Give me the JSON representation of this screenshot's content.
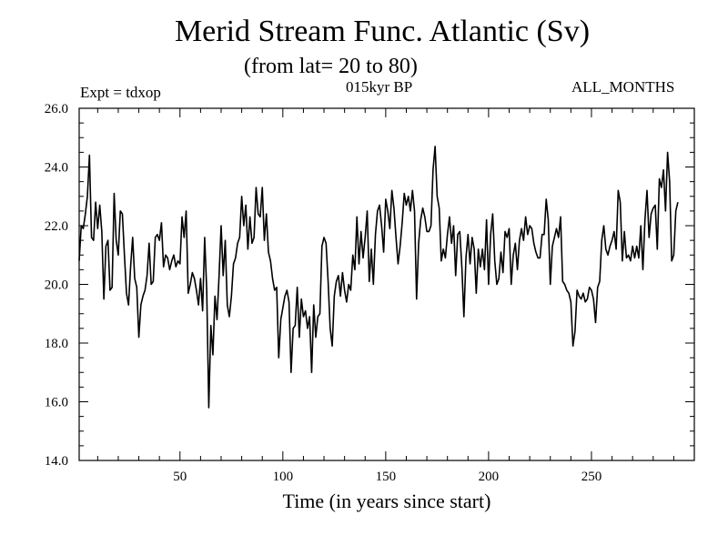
{
  "header": {
    "title": "Merid Stream Func. Atlantic (Sv)",
    "subtitle": "(from lat= 20 to 80)",
    "expt": "Expt = tdxop",
    "period": "015kyr BP",
    "months": "ALL_MONTHS"
  },
  "chart_data": {
    "type": "line",
    "title": "Merid Stream Func. Atlantic (Sv)",
    "subtitle": "(from lat= 20 to 80)",
    "xlabel": "Time (in years since start)",
    "ylabel": "",
    "xlim": [
      1,
      300
    ],
    "ylim": [
      14.0,
      26.0
    ],
    "xticks": [
      50,
      100,
      150,
      200,
      250
    ],
    "yticks": [
      14.0,
      16.0,
      18.0,
      20.0,
      22.0,
      24.0,
      26.0
    ],
    "ytick_labels": [
      "14.0",
      "16.0",
      "18.0",
      "20.0",
      "22.0",
      "24.0",
      "26.0"
    ],
    "grid": false,
    "color": "#000000",
    "series": [
      {
        "x_start": 1,
        "x_step": 1,
        "values": [
          20.8,
          22.0,
          21.9,
          22.4,
          23.0,
          24.4,
          21.6,
          21.5,
          22.8,
          21.9,
          22.7,
          21.8,
          19.5,
          21.3,
          21.5,
          19.8,
          19.9,
          23.1,
          21.5,
          21.0,
          22.5,
          22.4,
          21.0,
          19.7,
          19.3,
          20.6,
          21.6,
          20.2,
          19.9,
          18.2,
          19.3,
          19.6,
          19.8,
          20.3,
          21.4,
          20.0,
          20.1,
          21.6,
          21.7,
          21.5,
          22.1,
          20.6,
          21.0,
          20.9,
          20.5,
          20.8,
          21.0,
          20.6,
          20.8,
          20.7,
          22.3,
          21.6,
          22.5,
          19.7,
          20.0,
          20.4,
          20.2,
          19.8,
          19.3,
          20.2,
          19.1,
          21.6,
          19.8,
          15.8,
          18.6,
          17.6,
          19.6,
          18.8,
          20.3,
          22.0,
          20.3,
          21.5,
          19.3,
          18.9,
          19.6,
          20.7,
          20.9,
          21.4,
          21.6,
          23.0,
          22.0,
          22.7,
          21.2,
          22.3,
          21.4,
          21.6,
          23.3,
          22.4,
          22.3,
          23.3,
          21.5,
          22.4,
          21.1,
          20.8,
          20.2,
          19.8,
          19.9,
          17.5,
          18.8,
          19.2,
          19.6,
          19.8,
          19.4,
          17.0,
          18.5,
          18.6,
          19.9,
          18.2,
          19.5,
          18.9,
          19.1,
          18.5,
          18.9,
          17.0,
          19.3,
          18.2,
          18.9,
          19.0,
          21.3,
          21.6,
          21.4,
          20.1,
          18.5,
          17.9,
          19.6,
          20.1,
          20.3,
          19.6,
          20.4,
          19.8,
          19.4,
          20.0,
          19.8,
          21.0,
          20.5,
          22.3,
          20.7,
          21.8,
          20.9,
          21.6,
          22.5,
          20.1,
          21.2,
          20.0,
          21.7,
          22.5,
          22.7,
          22.0,
          21.1,
          22.9,
          22.5,
          21.9,
          23.2,
          22.6,
          21.6,
          20.7,
          21.3,
          22.1,
          23.1,
          22.7,
          23.0,
          22.5,
          23.2,
          22.5,
          19.5,
          21.4,
          22.2,
          22.6,
          22.3,
          21.8,
          21.8,
          22.0,
          23.9,
          24.7,
          23.0,
          22.6,
          20.8,
          21.2,
          20.9,
          21.7,
          22.3,
          21.4,
          22.0,
          20.3,
          21.7,
          21.8,
          20.6,
          18.9,
          20.9,
          21.7,
          20.7,
          21.6,
          21.2,
          19.7,
          21.2,
          20.6,
          21.2,
          20.5,
          22.2,
          20.0,
          21.7,
          22.4,
          20.8,
          20.0,
          20.2,
          21.1,
          20.4,
          21.8,
          21.6,
          21.9,
          20.0,
          21.0,
          21.4,
          20.5,
          21.5,
          21.9,
          21.5,
          22.3,
          21.7,
          22.0,
          21.9,
          21.4,
          21.1,
          20.9,
          20.9,
          21.7,
          21.7,
          22.9,
          22.2,
          20.0,
          21.3,
          21.6,
          21.9,
          21.6,
          22.3,
          20.1,
          20.0,
          19.8,
          19.7,
          19.4,
          17.9,
          18.4,
          19.8,
          19.6,
          19.5,
          19.7,
          19.4,
          19.5,
          19.9,
          19.8,
          19.5,
          18.7,
          19.9,
          20.1,
          21.5,
          22.0,
          21.2,
          21.0,
          21.3,
          21.5,
          21.8,
          21.2,
          23.2,
          22.8,
          20.8,
          21.8,
          20.9,
          21.0,
          20.8,
          21.3,
          20.9,
          21.3,
          20.9,
          22.0,
          20.5,
          22.2,
          23.2,
          21.6,
          22.4,
          22.6,
          22.7,
          21.2,
          23.6,
          23.3,
          23.9,
          22.5,
          24.5,
          23.5,
          20.8,
          21.0,
          22.5,
          22.8
        ]
      }
    ]
  }
}
